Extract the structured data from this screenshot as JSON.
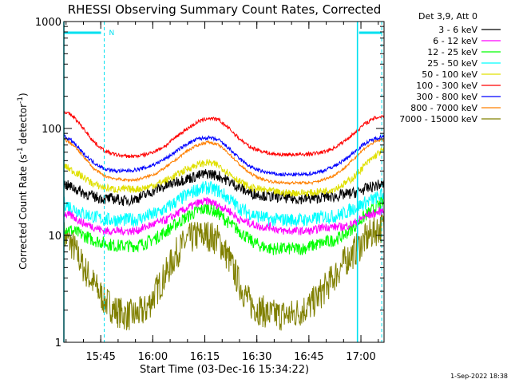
{
  "chart_data": {
    "type": "line",
    "title": "RHESSI Observing Summary Count Rates, Corrected",
    "xlabel": "Start Time (03-Dec-16 15:34:22)",
    "ylabel": "Corrected Count Rate (s⁻¹ detector⁻¹)",
    "ylabel_parts": {
      "prefix": "Corrected Count Rate (s",
      "exp1": "-1",
      "middle": " detector",
      "exp2": "-1",
      "suffix": ")"
    },
    "y_scale": "log",
    "ylim": [
      1,
      1000
    ],
    "y_ticks": [
      {
        "value": 1,
        "label": "1"
      },
      {
        "value": 10,
        "label": "10"
      },
      {
        "value": 100,
        "label": "100"
      },
      {
        "value": 1000,
        "label": "1000"
      }
    ],
    "xlim": [
      "15:34:22",
      "17:06:40"
    ],
    "x_ticks": [
      {
        "time": "15:45",
        "label": "15:45"
      },
      {
        "time": "16:00",
        "label": "16:00"
      },
      {
        "time": "16:15",
        "label": "16:15"
      },
      {
        "time": "16:30",
        "label": "16:30"
      },
      {
        "time": "16:45",
        "label": "16:45"
      },
      {
        "time": "17:00",
        "label": "17:00"
      }
    ],
    "legend_header": "Det 3,9, Att 0",
    "legend_position": "outside-right",
    "x": [
      "15:34:22",
      "15:37",
      "15:40",
      "15:43",
      "15:46",
      "15:49",
      "15:52",
      "15:55",
      "15:58",
      "16:01",
      "16:04",
      "16:07",
      "16:10",
      "16:13",
      "16:16",
      "16:19",
      "16:22",
      "16:25",
      "16:28",
      "16:31",
      "16:34",
      "16:37",
      "16:40",
      "16:43",
      "16:46",
      "16:49",
      "16:52",
      "16:55",
      "16:58",
      "17:01",
      "17:04",
      "17:06"
    ],
    "series": [
      {
        "name": "3 - 6 keV",
        "color": "#000000",
        "values": [
          30,
          28,
          25,
          23,
          22,
          22,
          21,
          22,
          24,
          27,
          29,
          32,
          34,
          36,
          38,
          36,
          32,
          28,
          25,
          24,
          23,
          23,
          22,
          22,
          22,
          23,
          23,
          24,
          25,
          27,
          29,
          30
        ]
      },
      {
        "name": "6 - 12 keV",
        "color": "#ff00ff",
        "values": [
          16,
          15,
          13,
          12,
          11,
          11,
          11,
          11,
          12,
          13,
          14,
          16,
          18,
          20,
          21,
          19,
          17,
          14,
          13,
          12,
          12,
          11,
          11,
          11,
          11,
          12,
          12,
          12,
          13,
          15,
          16,
          17
        ]
      },
      {
        "name": "12 - 25 keV",
        "color": "#00ff00",
        "values": [
          12,
          11,
          10,
          9,
          8.5,
          8,
          8,
          8,
          8.5,
          9.5,
          11,
          13,
          15,
          17,
          18,
          16,
          13,
          11,
          9,
          8,
          7.5,
          7.5,
          7.5,
          7.5,
          8,
          8.5,
          9,
          10,
          12,
          15,
          18,
          20
        ]
      },
      {
        "name": "25 - 50 keV",
        "color": "#00ffff",
        "values": [
          20,
          18,
          16,
          15,
          14,
          14,
          14,
          14,
          15,
          16,
          18,
          21,
          24,
          27,
          28,
          26,
          22,
          18,
          16,
          15,
          14,
          14,
          14,
          14,
          14,
          15,
          15,
          16,
          18,
          20,
          22,
          24
        ]
      },
      {
        "name": "50 - 100 keV",
        "color": "#e0e000",
        "values": [
          45,
          40,
          35,
          30,
          28,
          27,
          27,
          27,
          28,
          30,
          33,
          37,
          42,
          46,
          48,
          45,
          38,
          32,
          28,
          27,
          26,
          25,
          25,
          25,
          25,
          26,
          27,
          30,
          35,
          45,
          55,
          62
        ]
      },
      {
        "name": "100 - 300 keV",
        "color": "#ff0000",
        "values": [
          145,
          130,
          100,
          75,
          62,
          57,
          55,
          55,
          57,
          62,
          70,
          85,
          100,
          115,
          125,
          120,
          100,
          80,
          67,
          62,
          58,
          57,
          57,
          57,
          58,
          60,
          65,
          75,
          90,
          110,
          125,
          130
        ]
      },
      {
        "name": "300 - 800 keV",
        "color": "#0000ff",
        "values": [
          85,
          75,
          58,
          48,
          42,
          40,
          40,
          41,
          43,
          47,
          53,
          62,
          72,
          80,
          82,
          78,
          65,
          52,
          44,
          40,
          38,
          37,
          37,
          37,
          38,
          40,
          44,
          50,
          60,
          72,
          80,
          84
        ]
      },
      {
        "name": "800 - 7000 keV",
        "color": "#ff8000",
        "values": [
          80,
          70,
          55,
          42,
          36,
          34,
          33,
          33,
          35,
          38,
          44,
          52,
          62,
          70,
          75,
          70,
          58,
          46,
          38,
          34,
          32,
          31,
          31,
          31,
          31,
          33,
          36,
          42,
          52,
          65,
          75,
          78
        ]
      },
      {
        "name": "7000 - 15000 keV",
        "color": "#808000",
        "values": [
          10,
          8,
          5,
          3.5,
          2.5,
          2,
          1.8,
          1.8,
          2,
          3,
          4.5,
          7,
          9,
          10,
          10,
          9,
          6,
          3.5,
          2.3,
          2,
          1.8,
          1.8,
          1.8,
          2,
          2.3,
          3,
          4,
          5.5,
          7,
          9,
          11,
          12
        ]
      }
    ],
    "intervals": [
      {
        "label": "N",
        "start": "15:34:22",
        "end": "15:46"
      },
      {
        "label": "",
        "start": "16:59",
        "end": "17:06"
      }
    ],
    "timestamp": "1-Sep-2022 18:38"
  }
}
